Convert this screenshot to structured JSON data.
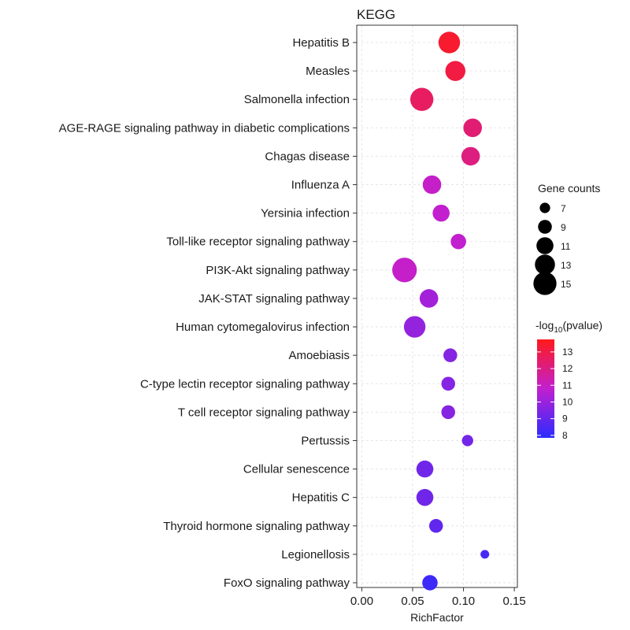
{
  "chart_data": {
    "type": "scatter",
    "title": "KEGG",
    "xlabel": "RichFactor",
    "ylabel": "",
    "xlim": [
      -0.005,
      0.153
    ],
    "xticks": [
      {
        "value": 0.0,
        "label": "0.00"
      },
      {
        "value": 0.05,
        "label": "0.05"
      },
      {
        "value": 0.1,
        "label": "0.10"
      },
      {
        "value": 0.15,
        "label": "0.15"
      }
    ],
    "grid": true,
    "points": [
      {
        "pathway": "Hepatitis B",
        "rich_factor": 0.086,
        "count": 14,
        "neg_log10_p": 13.4
      },
      {
        "pathway": "Measles",
        "rich_factor": 0.092,
        "count": 13,
        "neg_log10_p": 13.1
      },
      {
        "pathway": "Salmonella infection",
        "rich_factor": 0.059,
        "count": 15,
        "neg_log10_p": 12.6
      },
      {
        "pathway": "AGE-RAGE signaling pathway in diabetic complications",
        "rich_factor": 0.109,
        "count": 12,
        "neg_log10_p": 12.3
      },
      {
        "pathway": "Chagas disease",
        "rich_factor": 0.107,
        "count": 12,
        "neg_log10_p": 12.1
      },
      {
        "pathway": "Influenza A",
        "rich_factor": 0.069,
        "count": 12,
        "neg_log10_p": 10.9
      },
      {
        "pathway": "Yersinia infection",
        "rich_factor": 0.078,
        "count": 11,
        "neg_log10_p": 10.8
      },
      {
        "pathway": "Toll-like receptor signaling pathway",
        "rich_factor": 0.095,
        "count": 10,
        "neg_log10_p": 10.8
      },
      {
        "pathway": "PI3K-Akt signaling pathway",
        "rich_factor": 0.042,
        "count": 16,
        "neg_log10_p": 10.9
      },
      {
        "pathway": "JAK-STAT signaling pathway",
        "rich_factor": 0.066,
        "count": 12,
        "neg_log10_p": 10.2
      },
      {
        "pathway": "Human cytomegalovirus infection",
        "rich_factor": 0.052,
        "count": 14,
        "neg_log10_p": 9.9
      },
      {
        "pathway": "Amoebiasis",
        "rich_factor": 0.087,
        "count": 9,
        "neg_log10_p": 9.6
      },
      {
        "pathway": "C-type lectin receptor signaling pathway",
        "rich_factor": 0.085,
        "count": 9,
        "neg_log10_p": 9.6
      },
      {
        "pathway": "T cell receptor signaling pathway",
        "rich_factor": 0.085,
        "count": 9,
        "neg_log10_p": 9.6
      },
      {
        "pathway": "Pertussis",
        "rich_factor": 0.104,
        "count": 7.5,
        "neg_log10_p": 9.3
      },
      {
        "pathway": "Cellular senescence",
        "rich_factor": 0.062,
        "count": 11,
        "neg_log10_p": 9.2
      },
      {
        "pathway": "Hepatitis C",
        "rich_factor": 0.062,
        "count": 11,
        "neg_log10_p": 9.2
      },
      {
        "pathway": "Thyroid hormone signaling pathway",
        "rich_factor": 0.073,
        "count": 9,
        "neg_log10_p": 8.9
      },
      {
        "pathway": "Legionellosis",
        "rich_factor": 0.121,
        "count": 6,
        "neg_log10_p": 8.4
      },
      {
        "pathway": "FoxO signaling pathway",
        "rich_factor": 0.067,
        "count": 10,
        "neg_log10_p": 8.2
      }
    ],
    "size_legend": {
      "title": "Gene counts",
      "entries": [
        {
          "label": "7",
          "count": 7
        },
        {
          "label": "9",
          "count": 9
        },
        {
          "label": "11",
          "count": 11
        },
        {
          "label": "13",
          "count": 13
        },
        {
          "label": "15",
          "count": 15
        }
      ]
    },
    "color_legend": {
      "title_main": "-log",
      "title_sub": "10",
      "title_tail": "(pvalue)",
      "min": 7.85,
      "max": 13.75,
      "low_color": "#2b2bff",
      "mid_color": "#c21fcf",
      "high_color": "#ff1a1a",
      "ticks": [
        {
          "label": "13",
          "value": 13
        },
        {
          "label": "12",
          "value": 12
        },
        {
          "label": "11",
          "value": 11
        },
        {
          "label": "10",
          "value": 10
        },
        {
          "label": "9",
          "value": 9
        },
        {
          "label": "8",
          "value": 8
        }
      ]
    }
  }
}
